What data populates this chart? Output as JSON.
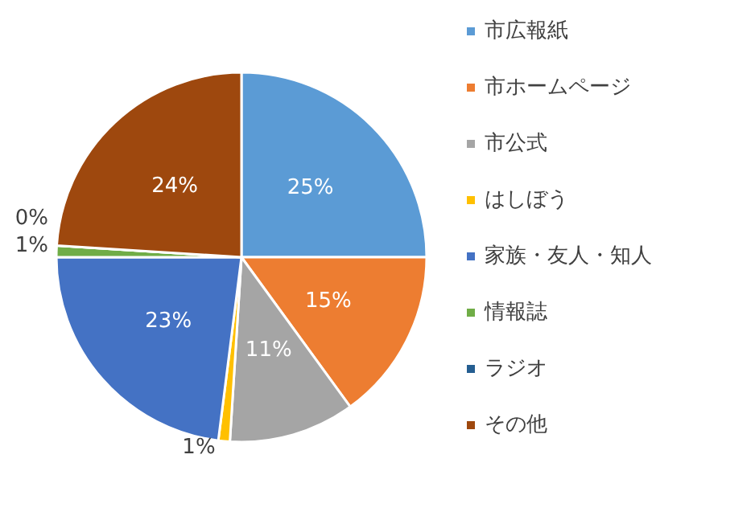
{
  "chart_data": {
    "type": "pie",
    "categories": [
      "市広報紙",
      "市ホームページ",
      "市公式",
      "はしぼう",
      "家族・友人・知人",
      "情報誌",
      "ラジオ",
      "その他"
    ],
    "values": [
      25,
      15,
      11,
      1,
      23,
      1,
      0,
      24
    ],
    "value_labels": [
      "25%",
      "15%",
      "11%",
      "1%",
      "23%",
      "1%",
      "0%",
      "24%"
    ],
    "colors": [
      "#5b9bd5",
      "#ed7d31",
      "#a5a5a5",
      "#ffc000",
      "#4472c4",
      "#70ad47",
      "#255e91",
      "#9e480e"
    ],
    "legend": "right"
  }
}
